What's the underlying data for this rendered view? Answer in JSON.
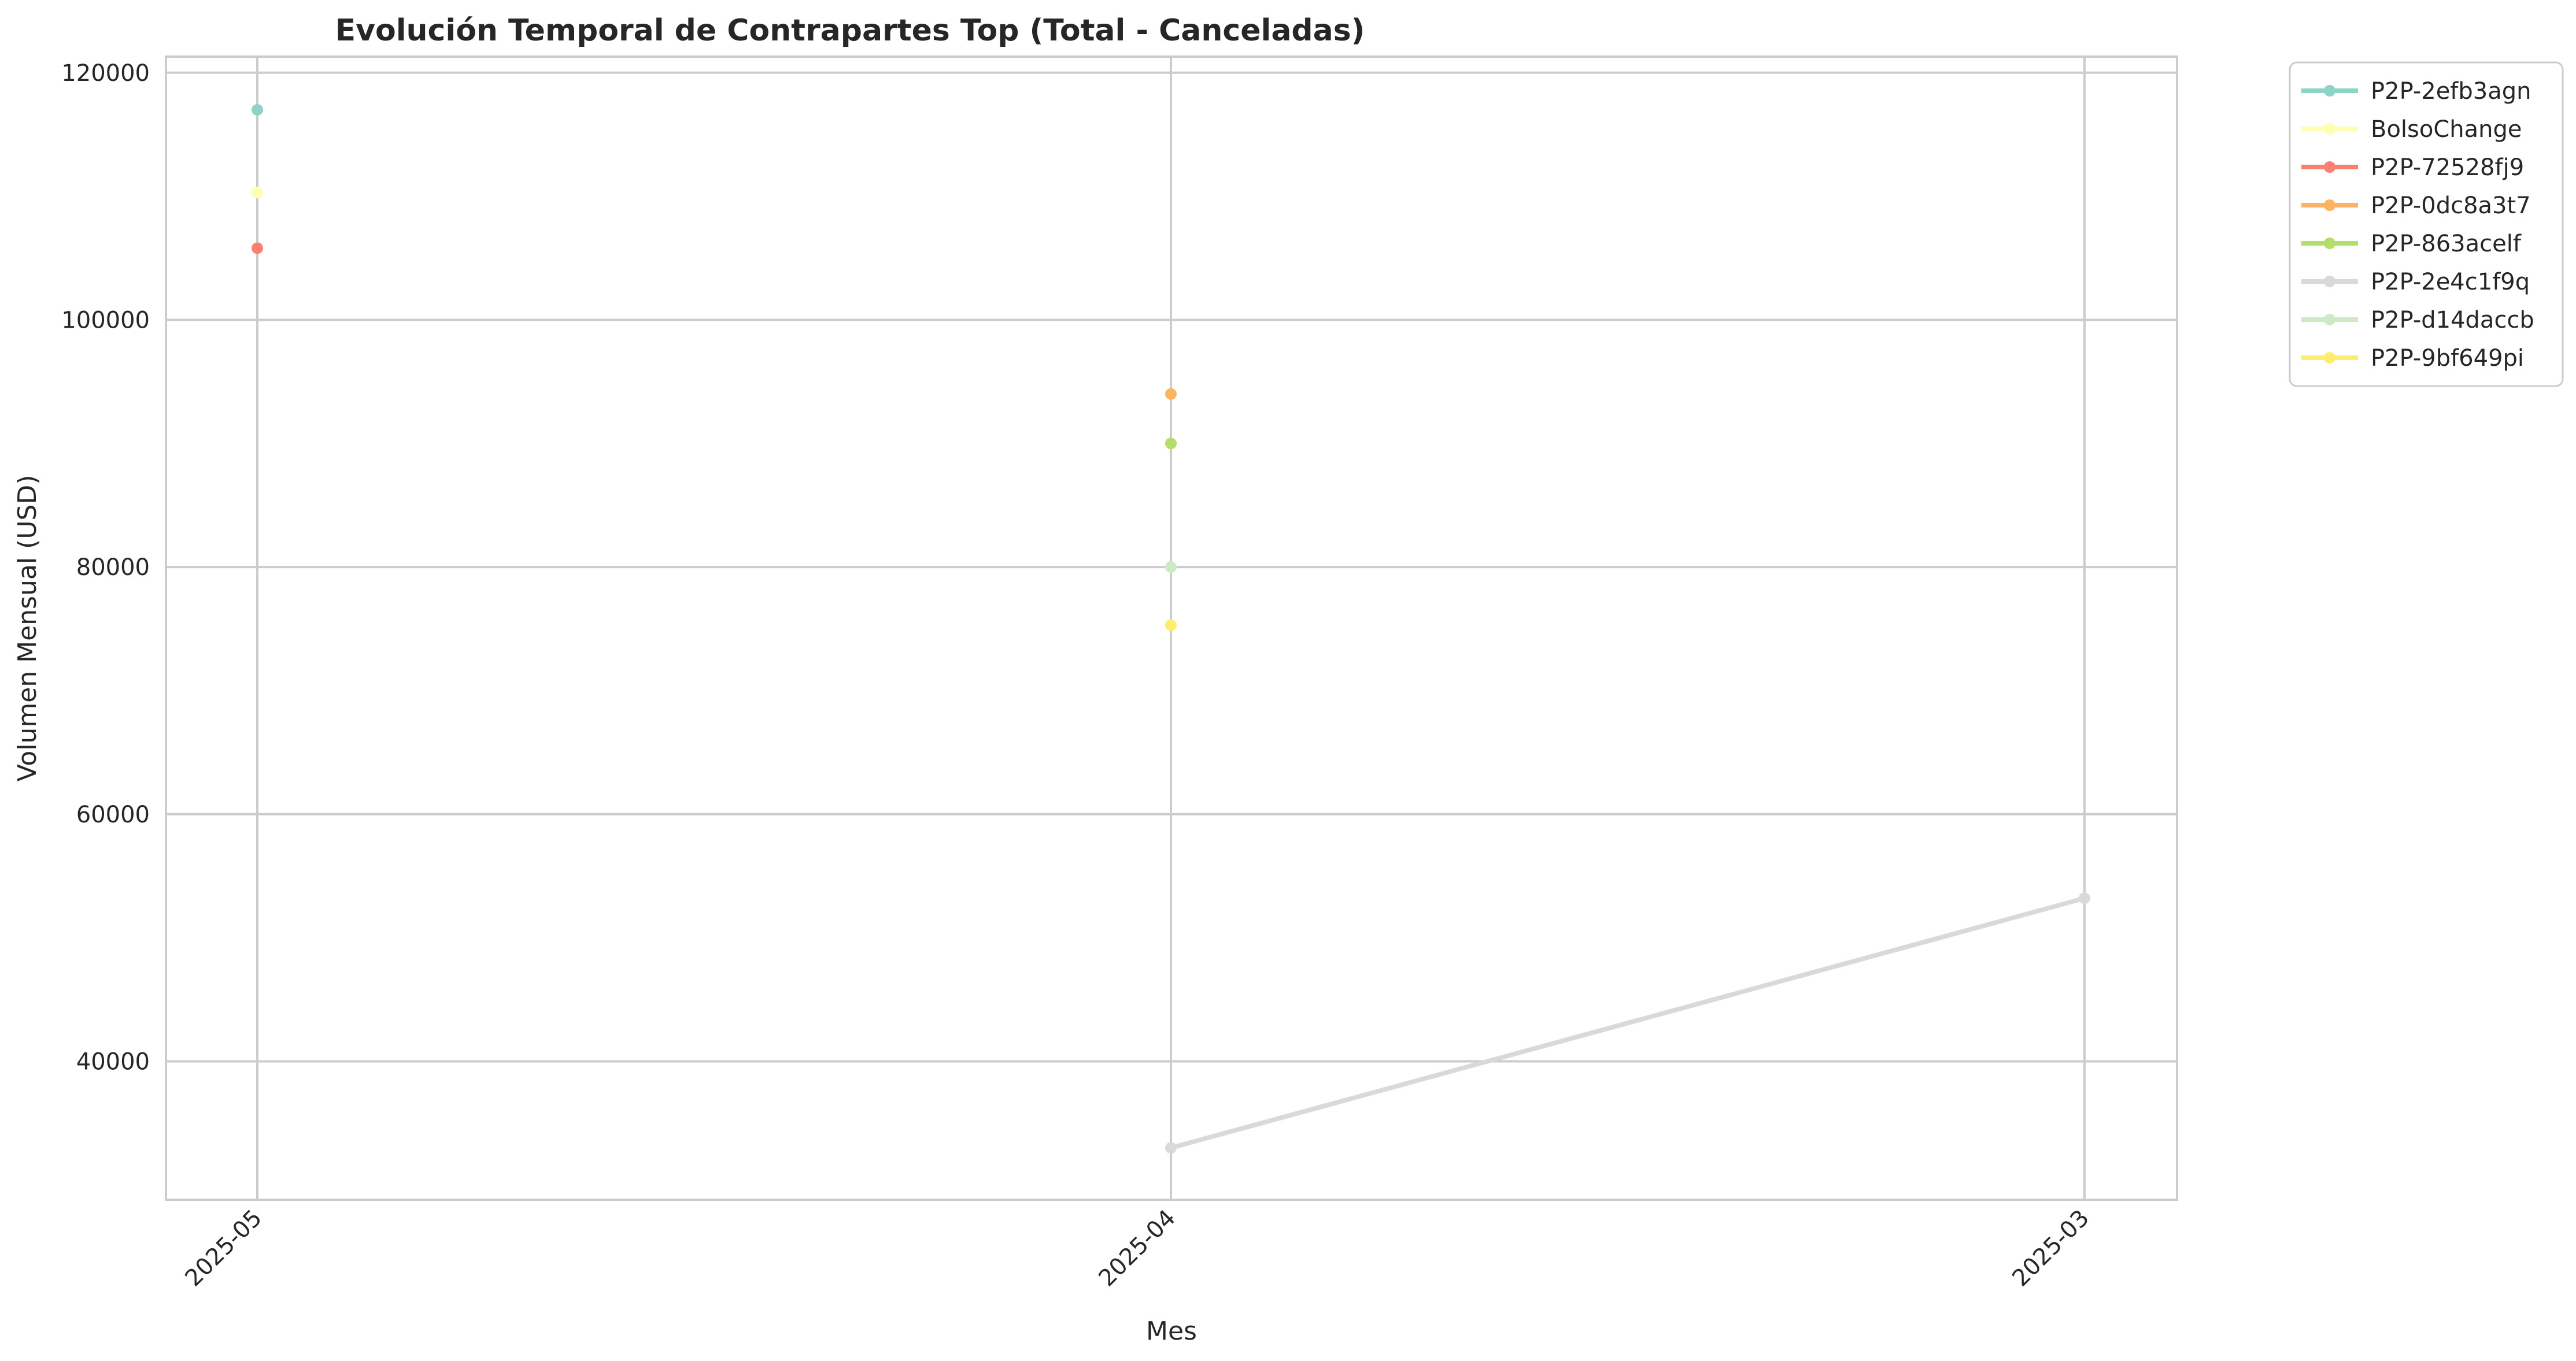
{
  "chart_data": {
    "type": "line",
    "title": "Evolución Temporal de Contrapartes Top (Total - Canceladas)",
    "xlabel": "Mes",
    "ylabel": "Volumen Mensual (USD)",
    "categories": [
      "2025-05",
      "2025-04",
      "2025-03"
    ],
    "yticks": [
      40000,
      60000,
      80000,
      100000,
      120000
    ],
    "ylim": [
      28800,
      121300
    ],
    "grid": true,
    "legend_position": "outside-top-right",
    "series": [
      {
        "name": "P2P-2efb3agn",
        "color": "#8dd3c7",
        "values": [
          117000,
          null,
          null
        ]
      },
      {
        "name": "BolsoChange",
        "color": "#ffffb3",
        "values": [
          110300,
          null,
          null
        ]
      },
      {
        "name": "P2P-72528fj9",
        "color": "#fb8072",
        "values": [
          105800,
          null,
          null
        ]
      },
      {
        "name": "P2P-0dc8a3t7",
        "color": "#fdb462",
        "values": [
          null,
          94000,
          null
        ]
      },
      {
        "name": "P2P-863acelf",
        "color": "#b3de69",
        "values": [
          null,
          90000,
          null
        ]
      },
      {
        "name": "P2P-2e4c1f9q",
        "color": "#d9d9d9",
        "values": [
          null,
          33000,
          53200
        ]
      },
      {
        "name": "P2P-d14daccb",
        "color": "#ccebc5",
        "values": [
          null,
          80000,
          null
        ]
      },
      {
        "name": "P2P-9bf649pi",
        "color": "#ffed6f",
        "values": [
          null,
          75300,
          null
        ]
      }
    ]
  }
}
